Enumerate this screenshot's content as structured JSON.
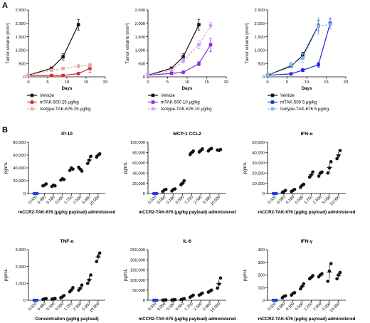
{
  "panels": {
    "A": "A",
    "B": "B"
  },
  "colors": {
    "black": "#111111",
    "red": "#d42a2a",
    "pink": "#f2a3a3",
    "purple": "#8e2bd6",
    "lavender": "#cf9ff2",
    "blue": "#1f2bd8",
    "lightblue": "#7ab4f4"
  },
  "chart_data": [
    {
      "type": "line",
      "panel": "A",
      "xlabel": "Days",
      "ylabel": "Tumor volume (mm³)",
      "xlim": [
        0,
        20
      ],
      "ylim": [
        0,
        2500
      ],
      "xticks": [
        "0",
        "5",
        "10",
        "15",
        "20"
      ],
      "yticks": [
        "0",
        "500",
        "1,000",
        "1,500",
        "2,000",
        "2,500"
      ],
      "series": [
        {
          "name": "Vehicle",
          "color": "#111111",
          "marker": "square",
          "dashed": false,
          "x": [
            0,
            6,
            9,
            13
          ],
          "y": [
            60,
            320,
            750,
            1950
          ],
          "err": [
            10,
            40,
            120,
            200
          ]
        },
        {
          "name": "mTAK-500 25 μg/kg",
          "color": "#d42a2a",
          "marker": "square",
          "dashed": false,
          "x": [
            0,
            6,
            9,
            13,
            16
          ],
          "y": [
            50,
            50,
            50,
            120,
            320
          ],
          "err": [
            10,
            10,
            15,
            40,
            150
          ]
        },
        {
          "name": "Isotype-TAK-676 25 μg/kg",
          "color": "#f2a3a3",
          "marker": "square",
          "dashed": true,
          "x": [
            0,
            6,
            9,
            13,
            16
          ],
          "y": [
            60,
            250,
            310,
            400,
            430
          ],
          "err": [
            10,
            40,
            50,
            60,
            80
          ]
        }
      ]
    },
    {
      "type": "line",
      "panel": "A",
      "xlabel": "Days",
      "ylabel": "Tumor volume (mm³)",
      "xlim": [
        0,
        20
      ],
      "ylim": [
        0,
        2500
      ],
      "xticks": [
        "0",
        "5",
        "10",
        "15",
        "20"
      ],
      "yticks": [
        "0",
        "500",
        "1,000",
        "1,500",
        "2,000",
        "2,500"
      ],
      "series": [
        {
          "name": "Vehicle",
          "color": "#111111",
          "marker": "square",
          "dashed": false,
          "x": [
            0,
            6,
            9,
            13
          ],
          "y": [
            60,
            320,
            750,
            1950
          ],
          "err": [
            10,
            40,
            120,
            200
          ]
        },
        {
          "name": "mTAK-500 10 μg/kg",
          "color": "#8e2bd6",
          "marker": "square",
          "dashed": false,
          "x": [
            0,
            6,
            9,
            13,
            16
          ],
          "y": [
            60,
            130,
            170,
            490,
            1200
          ],
          "err": [
            10,
            20,
            30,
            80,
            250
          ]
        },
        {
          "name": "Isotype-TAK-676 10 μg/kg",
          "color": "#cf9ff2",
          "marker": "square",
          "dashed": true,
          "x": [
            0,
            6,
            9,
            13,
            16
          ],
          "y": [
            60,
            250,
            600,
            1200,
            1920
          ],
          "err": [
            10,
            40,
            80,
            150,
            120
          ]
        }
      ]
    },
    {
      "type": "line",
      "panel": "A",
      "xlabel": "Days",
      "ylabel": "Tumor volume (mm³)",
      "xlim": [
        0,
        20
      ],
      "ylim": [
        0,
        2500
      ],
      "xticks": [
        "0",
        "5",
        "10",
        "15",
        "20"
      ],
      "yticks": [
        "0",
        "500",
        "1,000",
        "1,500",
        "2,000",
        "2,500"
      ],
      "series": [
        {
          "name": "Vehicle",
          "color": "#111111",
          "marker": "square",
          "dashed": false,
          "x": [
            0,
            6,
            9,
            13
          ],
          "y": [
            60,
            400,
            800,
            1920
          ],
          "err": [
            10,
            50,
            120,
            200
          ]
        },
        {
          "name": "mTAK-500 5 μg/kg",
          "color": "#1f2bd8",
          "marker": "square",
          "dashed": false,
          "x": [
            0,
            6,
            9,
            13,
            16
          ],
          "y": [
            60,
            110,
            250,
            450,
            2000
          ],
          "err": [
            10,
            20,
            60,
            100,
            200
          ]
        },
        {
          "name": "Isotype-TAK-676 5 μg/kg",
          "color": "#7ab4f4",
          "marker": "square",
          "dashed": true,
          "x": [
            0,
            6,
            9,
            13,
            16
          ],
          "y": [
            60,
            450,
            700,
            1900,
            1950
          ],
          "err": [
            10,
            100,
            150,
            300,
            150
          ]
        }
      ]
    },
    {
      "type": "scatter",
      "panel": "B",
      "title": "IP-10",
      "ylabel": "pg/mL",
      "xlabel": "mCCR2-TAK-676 (μg/kg payload) administered",
      "ylim": [
        0,
        80000
      ],
      "yticks": [
        "0",
        "20,000",
        "40,000",
        "60,000",
        "80,000"
      ],
      "categories": [
        "0.020",
        "0.060",
        "0.180",
        "0.500",
        "1.250",
        "2.500",
        "5.000",
        "10.000"
      ],
      "points": [
        [
          0,
          0,
          0
        ],
        [
          12000,
          13000,
          15000
        ],
        [
          11000,
          13000,
          12000
        ],
        [
          21000,
          23000,
          22000
        ],
        [
          36000,
          40000,
          38000
        ],
        [
          41000,
          38000,
          35000
        ],
        [
          47000,
          52000,
          58000
        ],
        [
          57000,
          60000,
          62000
        ]
      ]
    },
    {
      "type": "scatter",
      "panel": "B",
      "title": "MCP-1 CCL2",
      "ylabel": "pg/mL",
      "xlabel": "mCCR2-TAK-676 (μg/kg payload) administered",
      "ylim": [
        0,
        100000
      ],
      "yticks": [
        "0",
        "20,000",
        "40,000",
        "60,000",
        "80,000",
        "100,000"
      ],
      "categories": [
        "0.020",
        "0.060",
        "0.180",
        "0.500",
        "1.250",
        "2.500",
        "5.000",
        "10.000"
      ],
      "points": [
        [
          0,
          0,
          0
        ],
        [
          4000,
          7000,
          8000
        ],
        [
          5000,
          8000,
          9000
        ],
        [
          17000,
          20000,
          25000
        ],
        [
          76000,
          80000,
          83000
        ],
        [
          81000,
          84000,
          87000
        ],
        [
          83000,
          86000,
          88000
        ],
        [
          85000,
          84000,
          86000
        ]
      ]
    },
    {
      "type": "scatter",
      "panel": "B",
      "title": "IFN-α",
      "ylabel": "pg/mL",
      "xlabel": "mCCR2-TAK-676 (μg/kg payload) administered",
      "ylim": [
        0,
        50000
      ],
      "yticks": [
        "0",
        "10,000",
        "20,000",
        "30,000",
        "40,000",
        "50,000"
      ],
      "categories": [
        "0.020",
        "0.060",
        "0.180",
        "0.500",
        "1.250",
        "2.500",
        "5.000",
        "10.000"
      ],
      "points": [
        [
          0,
          0,
          0
        ],
        [
          1000,
          2000,
          3000
        ],
        [
          2000,
          3000,
          4000
        ],
        [
          6000,
          8000,
          9000
        ],
        [
          16000,
          18000,
          21000
        ],
        [
          17000,
          20000,
          21000
        ],
        [
          20000,
          25000,
          31000
        ],
        [
          34000,
          37000,
          42000
        ]
      ]
    },
    {
      "type": "scatter",
      "panel": "B",
      "title": "TNF-α",
      "ylabel": "pg/mL",
      "xlabel": "Concentration (μg/kg payload)",
      "ylim": [
        0,
        3000
      ],
      "yticks": [
        "0",
        "1,000",
        "2,000",
        "3,000"
      ],
      "categories": [
        "0.020",
        "0.060",
        "0.180",
        "0.500",
        "1.250",
        "2.500",
        "5.000",
        "10.000"
      ],
      "points": [
        [
          0,
          0,
          0
        ],
        [
          50,
          80,
          100
        ],
        [
          60,
          90,
          110
        ],
        [
          150,
          200,
          280
        ],
        [
          500,
          600,
          750
        ],
        [
          600,
          700,
          900
        ],
        [
          1000,
          1200,
          1500
        ],
        [
          2300,
          2600,
          2800
        ]
      ]
    },
    {
      "type": "scatter",
      "panel": "B",
      "title": "IL-6",
      "ylabel": "pg/mL",
      "xlabel": "mCCR2-TAK-676 (μg/kg payload) administered",
      "ylim": [
        0,
        250000
      ],
      "yticks": [
        "0",
        "50,000",
        "100,000",
        "150,000",
        "200,000",
        "250,000"
      ],
      "categories": [
        "0.020",
        "0.060",
        "0.180",
        "0.500",
        "1.250",
        "2.500",
        "5.000",
        "10.000"
      ],
      "points": [
        [
          0,
          0,
          0
        ],
        [
          500,
          1000,
          1500
        ],
        [
          1000,
          2000,
          3000
        ],
        [
          3000,
          5000,
          8000
        ],
        [
          15000,
          20000,
          25000
        ],
        [
          25000,
          30000,
          35000
        ],
        [
          40000,
          45000,
          50000
        ],
        [
          60000,
          80000,
          110000
        ]
      ]
    },
    {
      "type": "scatter",
      "panel": "B",
      "title": "IFN-γ",
      "ylabel": "pg/mL",
      "xlabel": "mCCR2-TAK-676 (μg/kg payload) administered",
      "ylim": [
        0,
        400
      ],
      "yticks": [
        "0",
        "100",
        "200",
        "300",
        "400"
      ],
      "categories": [
        "0.020",
        "0.060",
        "0.180",
        "0.500",
        "1.250",
        "2.500",
        "5.000",
        "10.000"
      ],
      "points": [
        [
          0,
          0,
          0
        ],
        [
          20,
          30,
          35
        ],
        [
          40,
          55,
          60
        ],
        [
          90,
          110,
          130
        ],
        [
          170,
          180,
          195
        ],
        [
          185,
          200,
          210
        ],
        [
          150,
          230,
          290
        ],
        [
          170,
          200,
          220
        ]
      ]
    }
  ]
}
